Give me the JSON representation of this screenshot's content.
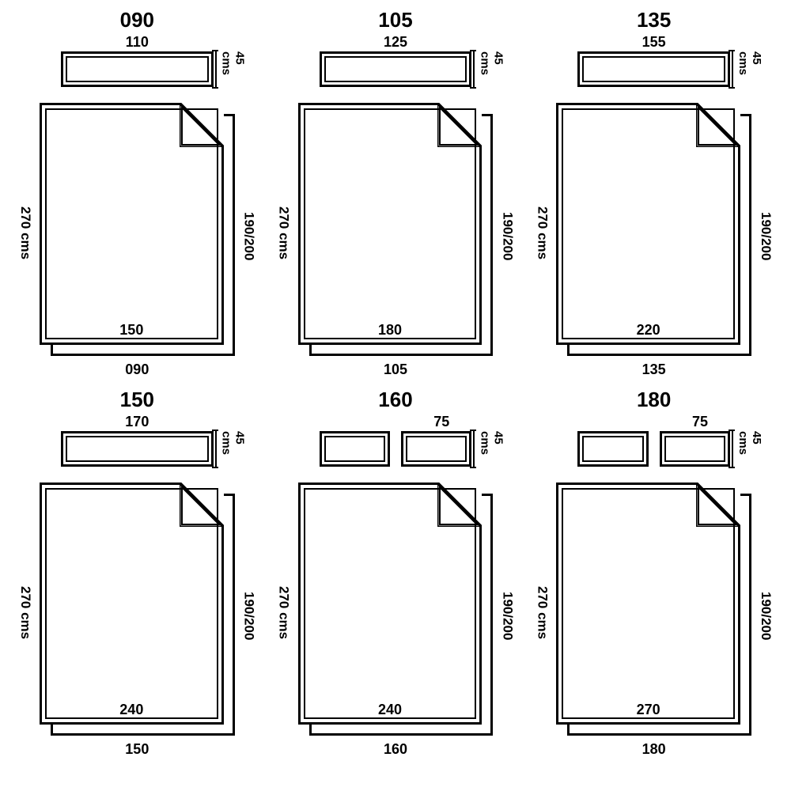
{
  "type": "infographic",
  "background_color": "#ffffff",
  "stroke_color": "#000000",
  "stroke_width_outer": 3,
  "stroke_width_inner": 2,
  "title_fontsize": 26,
  "label_fontsize": 18,
  "side_label_fontsize": 17,
  "grid": {
    "cols": 3,
    "rows": 2
  },
  "items": [
    {
      "title": "090",
      "pillow_mode": "single",
      "pillow_top": "110",
      "pillow_side": "45 cms",
      "sheet_left": "270 cms",
      "sheet_right": "190/200",
      "sheet_inner": "150",
      "sheet_bottom": "090"
    },
    {
      "title": "105",
      "pillow_mode": "single",
      "pillow_top": "125",
      "pillow_side": "45 cms",
      "sheet_left": "270 cms",
      "sheet_right": "190/200",
      "sheet_inner": "180",
      "sheet_bottom": "105"
    },
    {
      "title": "135",
      "pillow_mode": "single",
      "pillow_top": "155",
      "pillow_side": "45 cms",
      "sheet_left": "270 cms",
      "sheet_right": "190/200",
      "sheet_inner": "220",
      "sheet_bottom": "135"
    },
    {
      "title": "150",
      "pillow_mode": "single",
      "pillow_top": "170",
      "pillow_side": "45 cms",
      "sheet_left": "270 cms",
      "sheet_right": "190/200",
      "sheet_inner": "240",
      "sheet_bottom": "150"
    },
    {
      "title": "160",
      "pillow_mode": "pair",
      "pillow_top": "75",
      "pillow_side": "45 cms",
      "sheet_left": "270 cms",
      "sheet_right": "190/200",
      "sheet_inner": "240",
      "sheet_bottom": "160"
    },
    {
      "title": "180",
      "pillow_mode": "pair",
      "pillow_top": "75",
      "pillow_side": "45 cms",
      "sheet_left": "270 cms",
      "sheet_right": "190/200",
      "sheet_inner": "270",
      "sheet_bottom": "180"
    }
  ]
}
